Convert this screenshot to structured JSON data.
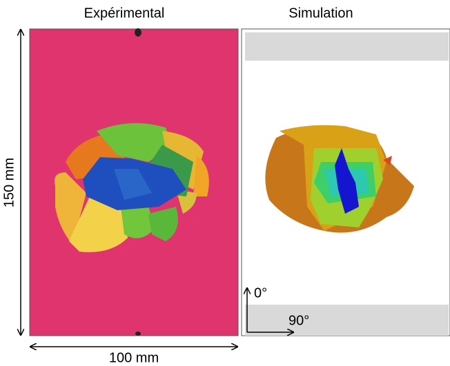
{
  "panels": [
    {
      "title": "Expérimental"
    },
    {
      "title": "Simulation"
    }
  ],
  "dimensions": {
    "height": "150 mm",
    "width": "100 mm"
  },
  "orientation": {
    "up": "0°",
    "right": "90°"
  }
}
